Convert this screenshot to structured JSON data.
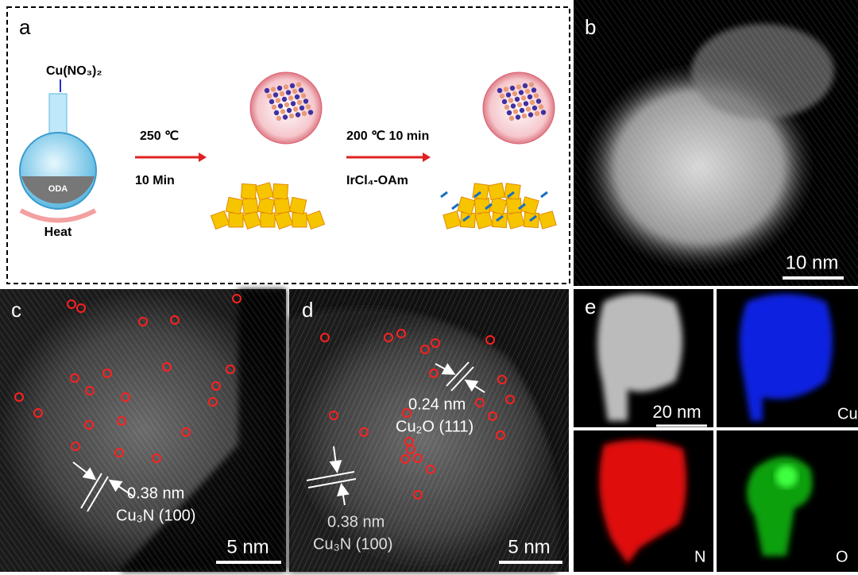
{
  "panel_a": {
    "label": "a",
    "precursor": "Cu(NO₃)₂",
    "solvent": "ODA",
    "heat": "Heat",
    "step1_temp": "250 ℃",
    "step1_time": "10 Min",
    "step2_cond": "200 ℃ 10 min",
    "step2_reagent": "IrCl₄-OAm"
  },
  "panel_b": {
    "label": "b",
    "scale_bar": "10 nm"
  },
  "panel_c": {
    "label": "c",
    "spacing": "0.38 nm",
    "plane": "Cu₃N (100)",
    "scale_bar": "5 nm"
  },
  "panel_d": {
    "label": "d",
    "spacing_1": "0.24 nm",
    "plane_1": "Cu₂O (111)",
    "spacing_2": "0.38 nm",
    "plane_2": "Cu₃N (100)",
    "scale_bar": "5 nm"
  },
  "panel_e": {
    "label": "e",
    "scale_bar": "20 nm",
    "maps": [
      "Cu",
      "N",
      "O"
    ]
  }
}
